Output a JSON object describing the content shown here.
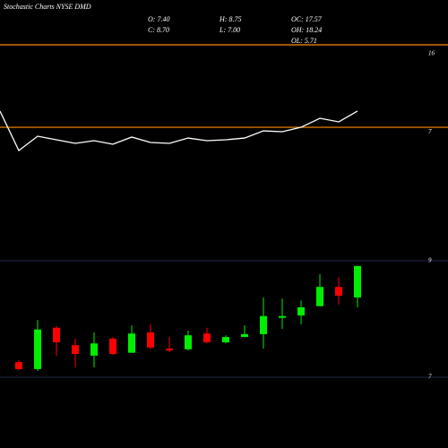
{
  "header": {
    "title": "Stochastic Charts NYSE DMD",
    "stats": [
      [
        "O: 7.40",
        "C: 8.70"
      ],
      [
        "H: 8.75",
        "L: 7.00"
      ],
      [
        "OC: 17.57",
        "OH: 18.24",
        "OL: 5.71"
      ]
    ]
  },
  "chart_data": [
    {
      "type": "line",
      "categories": [
        null,
        null,
        null,
        null,
        null,
        null,
        null,
        null,
        null,
        null,
        null,
        null,
        null,
        null,
        null,
        null,
        null,
        null,
        null,
        null
      ],
      "values": [
        9.42,
        4.91,
        6.55,
        6.14,
        5.73,
        6.04,
        5.63,
        6.45,
        5.83,
        5.73,
        6.34,
        6.04,
        6.14,
        6.34,
        7.16,
        7.06,
        7.57,
        8.6,
        8.19,
        9.42
      ],
      "color": "#ffffff",
      "ylim": [
        -4,
        17
      ],
      "yticks": [
        16,
        7
      ],
      "grid": false,
      "hlines": [
        {
          "value": 17,
          "color": "#ff8c00"
        },
        {
          "value": 7.57,
          "color": "#ff8c00"
        }
      ]
    },
    {
      "type": "candlestick",
      "categories": [
        null,
        null,
        null,
        null,
        null,
        null,
        null,
        null,
        null,
        null,
        null,
        null,
        null,
        null,
        null,
        null,
        null,
        null,
        null
      ],
      "open": [
        7.26,
        7.14,
        7.85,
        7.55,
        7.37,
        7.66,
        7.42,
        7.77,
        7.49,
        7.48,
        7.75,
        7.6,
        7.69,
        7.74,
        8.02,
        8.06,
        8.22,
        8.55,
        8.37
      ],
      "high": [
        7.29,
        7.98,
        7.88,
        7.66,
        7.77,
        7.69,
        7.89,
        7.91,
        7.69,
        7.8,
        7.85,
        7.72,
        7.89,
        8.37,
        8.35,
        8.32,
        8.77,
        8.72,
        8.91
      ],
      "low": [
        7.12,
        7.11,
        7.37,
        7.17,
        7.17,
        7.38,
        7.42,
        7.48,
        7.43,
        7.46,
        7.58,
        7.58,
        7.69,
        7.49,
        7.83,
        7.91,
        8.22,
        8.25,
        8.2
      ],
      "close": [
        7.14,
        7.82,
        7.6,
        7.4,
        7.58,
        7.4,
        7.75,
        7.51,
        7.46,
        7.72,
        7.6,
        7.69,
        7.74,
        8.05,
        8.05,
        8.2,
        8.55,
        8.4,
        8.91
      ],
      "up_color": "#00ee00",
      "down_color": "#ff0000",
      "ylim": [
        6.7,
        9.3
      ],
      "yticks": [
        9,
        7
      ],
      "grid": true,
      "grid_color": "#22264a"
    }
  ]
}
